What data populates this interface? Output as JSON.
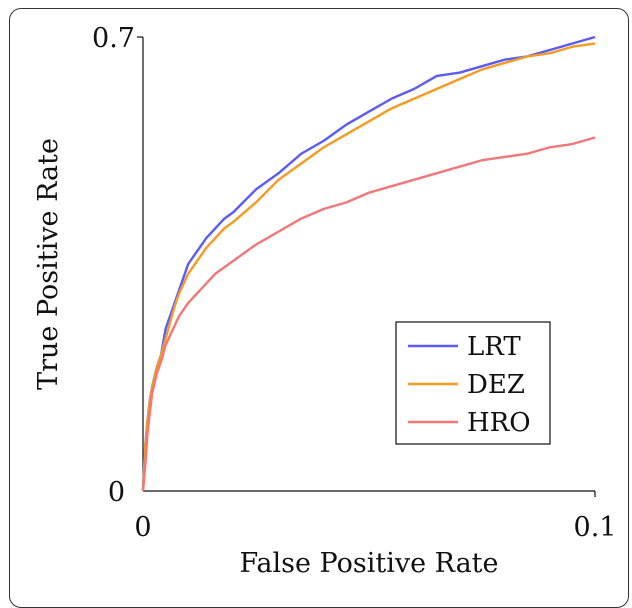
{
  "chart_data": {
    "type": "line",
    "title": "",
    "xlabel": "False Positive Rate",
    "ylabel": "True Positive Rate",
    "xlim": [
      0,
      0.1
    ],
    "ylim": [
      0,
      0.7
    ],
    "x_ticks": [
      "0",
      "0.1"
    ],
    "y_ticks": [
      "0",
      "0.7"
    ],
    "legend_position": "lower-right",
    "grid": false,
    "series": [
      {
        "name": "LRT",
        "color": "#5b5bf5",
        "x": [
          0.0,
          0.0005,
          0.001,
          0.0015,
          0.002,
          0.003,
          0.004,
          0.005,
          0.006,
          0.007,
          0.008,
          0.009,
          0.01,
          0.012,
          0.014,
          0.016,
          0.018,
          0.02,
          0.025,
          0.03,
          0.035,
          0.04,
          0.045,
          0.05,
          0.055,
          0.06,
          0.065,
          0.07,
          0.075,
          0.08,
          0.085,
          0.09,
          0.095,
          0.1
        ],
        "y": [
          0.0,
          0.07,
          0.11,
          0.14,
          0.16,
          0.19,
          0.21,
          0.25,
          0.27,
          0.29,
          0.31,
          0.33,
          0.35,
          0.37,
          0.39,
          0.405,
          0.42,
          0.43,
          0.465,
          0.49,
          0.52,
          0.54,
          0.565,
          0.585,
          0.605,
          0.62,
          0.64,
          0.645,
          0.655,
          0.665,
          0.67,
          0.68,
          0.69,
          0.7
        ]
      },
      {
        "name": "DEZ",
        "color": "#f59a23",
        "x": [
          0.0,
          0.0005,
          0.001,
          0.0015,
          0.002,
          0.003,
          0.004,
          0.005,
          0.006,
          0.007,
          0.008,
          0.009,
          0.01,
          0.012,
          0.014,
          0.016,
          0.018,
          0.02,
          0.025,
          0.03,
          0.035,
          0.04,
          0.045,
          0.05,
          0.055,
          0.06,
          0.065,
          0.07,
          0.075,
          0.08,
          0.085,
          0.09,
          0.095,
          0.1
        ],
        "y": [
          0.0,
          0.07,
          0.11,
          0.14,
          0.16,
          0.19,
          0.21,
          0.235,
          0.26,
          0.285,
          0.305,
          0.32,
          0.335,
          0.355,
          0.375,
          0.39,
          0.405,
          0.415,
          0.445,
          0.48,
          0.505,
          0.53,
          0.55,
          0.57,
          0.59,
          0.605,
          0.62,
          0.635,
          0.65,
          0.66,
          0.67,
          0.675,
          0.685,
          0.69
        ]
      },
      {
        "name": "HRO",
        "color": "#f07878",
        "x": [
          0.0,
          0.0005,
          0.001,
          0.0015,
          0.002,
          0.003,
          0.004,
          0.005,
          0.006,
          0.007,
          0.008,
          0.009,
          0.01,
          0.012,
          0.014,
          0.016,
          0.018,
          0.02,
          0.025,
          0.03,
          0.035,
          0.04,
          0.045,
          0.05,
          0.055,
          0.06,
          0.065,
          0.07,
          0.075,
          0.08,
          0.085,
          0.09,
          0.095,
          0.1
        ],
        "y": [
          0.0,
          0.04,
          0.09,
          0.12,
          0.15,
          0.18,
          0.2,
          0.225,
          0.24,
          0.255,
          0.27,
          0.28,
          0.29,
          0.305,
          0.32,
          0.335,
          0.345,
          0.355,
          0.38,
          0.4,
          0.42,
          0.435,
          0.445,
          0.46,
          0.47,
          0.48,
          0.49,
          0.5,
          0.51,
          0.515,
          0.52,
          0.53,
          0.535,
          0.545
        ]
      }
    ]
  }
}
